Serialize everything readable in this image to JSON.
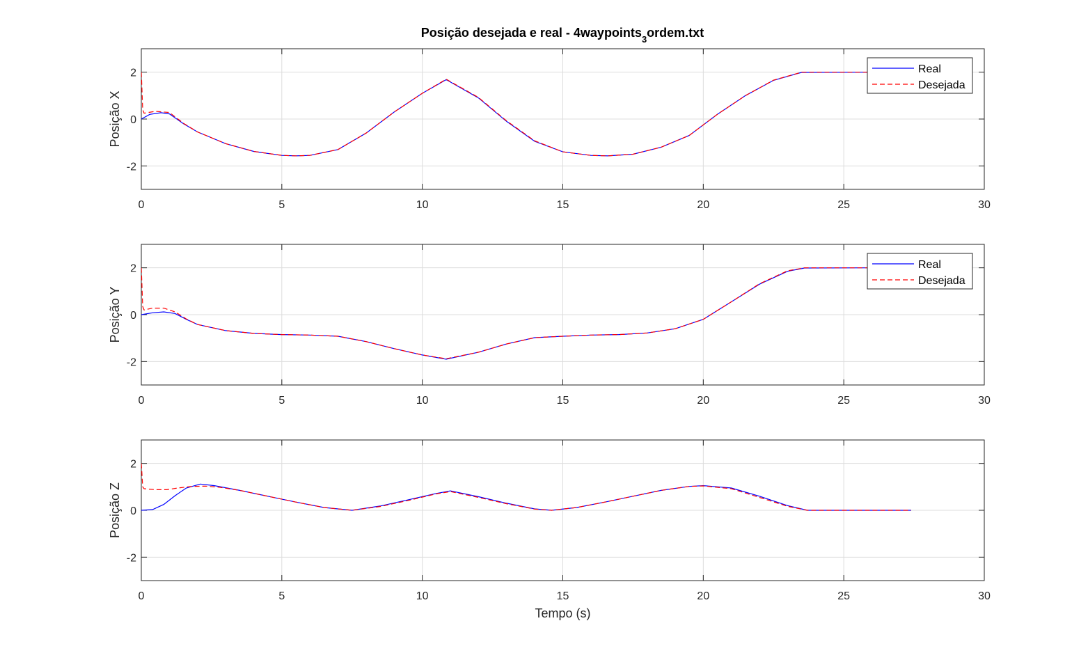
{
  "chart_data": [
    {
      "type": "line",
      "title_main": "Posição desejada e real - 4waypoints",
      "title_sub": "3",
      "title_end": "ordem.txt",
      "xlabel": "",
      "ylabel": "Posição X",
      "xlim": [
        0,
        30
      ],
      "ylim": [
        -3,
        3
      ],
      "xticks": [
        "0",
        "5",
        "10",
        "15",
        "20",
        "25",
        "30"
      ],
      "yticks": [
        "-2",
        "0",
        "2"
      ],
      "grid": true,
      "legend_position": "top-right",
      "series": [
        {
          "name": "Real",
          "style": "solid",
          "color": "#0000ff",
          "x": [
            0,
            0.3,
            0.7,
            1.0,
            1.5,
            2.0,
            3.0,
            4.0,
            5.0,
            5.5,
            6.0,
            7.0,
            8.0,
            9.0,
            10.0,
            10.85,
            12.0,
            13.0,
            14.0,
            15.0,
            16.0,
            16.6,
            17.5,
            18.5,
            19.5,
            20.5,
            21.5,
            22.5,
            23.5,
            26.0
          ],
          "y": [
            0.0,
            0.2,
            0.27,
            0.22,
            -0.2,
            -0.55,
            -1.05,
            -1.38,
            -1.55,
            -1.57,
            -1.55,
            -1.3,
            -0.6,
            0.3,
            1.1,
            1.68,
            0.9,
            -0.1,
            -0.95,
            -1.4,
            -1.55,
            -1.57,
            -1.5,
            -1.2,
            -0.7,
            0.2,
            1.0,
            1.65,
            1.99,
            2.0
          ]
        },
        {
          "name": "Desejada",
          "style": "dashed",
          "color": "#ff0000",
          "x": [
            0,
            0.05,
            0.1,
            0.5,
            1.0,
            1.5,
            2.0,
            3.0,
            4.0,
            5.0,
            5.5,
            6.0,
            7.0,
            8.0,
            9.0,
            10.0,
            10.85,
            12.0,
            13.0,
            14.0,
            15.0,
            16.0,
            16.6,
            17.5,
            18.5,
            19.5,
            20.5,
            21.5,
            22.5,
            23.5,
            26.0
          ],
          "y": [
            2.0,
            0.4,
            0.25,
            0.33,
            0.28,
            -0.18,
            -0.55,
            -1.05,
            -1.38,
            -1.55,
            -1.57,
            -1.55,
            -1.3,
            -0.6,
            0.3,
            1.1,
            1.7,
            0.92,
            -0.08,
            -0.93,
            -1.4,
            -1.55,
            -1.57,
            -1.5,
            -1.2,
            -0.7,
            0.2,
            1.0,
            1.66,
            2.0,
            2.0
          ]
        }
      ]
    },
    {
      "type": "line",
      "xlabel": "",
      "ylabel": "Posição Y",
      "xlim": [
        0,
        30
      ],
      "ylim": [
        -3,
        3
      ],
      "xticks": [
        "0",
        "5",
        "10",
        "15",
        "20",
        "25",
        "30"
      ],
      "yticks": [
        "-2",
        "0",
        "2"
      ],
      "grid": true,
      "legend_position": "top-right",
      "series": [
        {
          "name": "Real",
          "style": "solid",
          "color": "#0000ff",
          "x": [
            0,
            0.4,
            0.8,
            1.2,
            1.6,
            2.0,
            3.0,
            4.0,
            5.0,
            6.0,
            7.0,
            8.0,
            9.0,
            10.0,
            10.85,
            12.0,
            13.0,
            14.0,
            15.0,
            16.0,
            17.0,
            18.0,
            19.0,
            20.0,
            21.0,
            22.0,
            23.0,
            23.6,
            26.0
          ],
          "y": [
            0.0,
            0.08,
            0.12,
            0.05,
            -0.2,
            -0.42,
            -0.68,
            -0.8,
            -0.85,
            -0.87,
            -0.92,
            -1.15,
            -1.45,
            -1.72,
            -1.9,
            -1.6,
            -1.25,
            -0.98,
            -0.92,
            -0.87,
            -0.85,
            -0.78,
            -0.6,
            -0.2,
            0.55,
            1.3,
            1.85,
            1.99,
            2.0
          ]
        },
        {
          "name": "Desejada",
          "style": "dashed",
          "color": "#ff0000",
          "x": [
            0,
            0.05,
            0.1,
            0.4,
            0.8,
            1.2,
            1.6,
            2.0,
            3.0,
            4.0,
            5.0,
            6.0,
            7.0,
            8.0,
            9.0,
            10.0,
            10.85,
            12.0,
            13.0,
            14.0,
            15.0,
            16.0,
            17.0,
            18.0,
            19.0,
            20.0,
            21.0,
            22.0,
            23.0,
            23.6,
            26.0
          ],
          "y": [
            2.0,
            0.35,
            0.2,
            0.28,
            0.28,
            0.12,
            -0.18,
            -0.42,
            -0.68,
            -0.8,
            -0.85,
            -0.87,
            -0.92,
            -1.15,
            -1.45,
            -1.72,
            -1.88,
            -1.6,
            -1.25,
            -0.98,
            -0.92,
            -0.87,
            -0.85,
            -0.78,
            -0.6,
            -0.2,
            0.55,
            1.32,
            1.87,
            2.0,
            2.0
          ]
        }
      ]
    },
    {
      "type": "line",
      "xlabel": "Tempo (s)",
      "ylabel": "Posição Z",
      "xlim": [
        0,
        30
      ],
      "ylim": [
        -3,
        3
      ],
      "xticks": [
        "0",
        "5",
        "10",
        "15",
        "20",
        "25",
        "30"
      ],
      "yticks": [
        "-2",
        "0",
        "2"
      ],
      "grid": true,
      "series": [
        {
          "name": "Real",
          "style": "solid",
          "color": "#0000ff",
          "x": [
            0,
            0.4,
            0.8,
            1.2,
            1.6,
            2.1,
            2.6,
            3.5,
            4.5,
            5.5,
            6.5,
            7.5,
            8.5,
            9.5,
            10.5,
            11.0,
            12.0,
            13.0,
            14.0,
            14.6,
            15.5,
            16.5,
            17.5,
            18.5,
            19.5,
            20.0,
            21.0,
            22.0,
            23.0,
            23.7,
            25.0,
            27.4
          ],
          "y": [
            0.0,
            0.03,
            0.25,
            0.62,
            0.95,
            1.12,
            1.05,
            0.85,
            0.6,
            0.35,
            0.12,
            0.0,
            0.18,
            0.45,
            0.72,
            0.83,
            0.58,
            0.3,
            0.06,
            0.0,
            0.12,
            0.35,
            0.6,
            0.85,
            1.02,
            1.05,
            0.95,
            0.6,
            0.2,
            0.0,
            0.0,
            0.0
          ]
        },
        {
          "name": "Desejada",
          "style": "dashed",
          "color": "#ff0000",
          "x": [
            0,
            0.05,
            0.1,
            0.5,
            0.9,
            1.3,
            1.8,
            2.3,
            2.8,
            3.5,
            4.5,
            5.5,
            6.5,
            7.5,
            8.5,
            9.5,
            10.5,
            11.0,
            12.0,
            13.0,
            14.0,
            14.6,
            15.5,
            16.5,
            17.5,
            18.5,
            19.5,
            20.0,
            21.0,
            22.0,
            23.0,
            23.7,
            25.0,
            27.4
          ],
          "y": [
            2.0,
            1.0,
            0.92,
            0.88,
            0.88,
            0.95,
            1.02,
            1.03,
            0.98,
            0.85,
            0.6,
            0.35,
            0.12,
            0.0,
            0.16,
            0.42,
            0.7,
            0.8,
            0.55,
            0.28,
            0.05,
            0.0,
            0.12,
            0.35,
            0.6,
            0.85,
            1.02,
            1.04,
            0.92,
            0.55,
            0.17,
            0.0,
            0.0,
            0.0
          ]
        }
      ]
    }
  ]
}
